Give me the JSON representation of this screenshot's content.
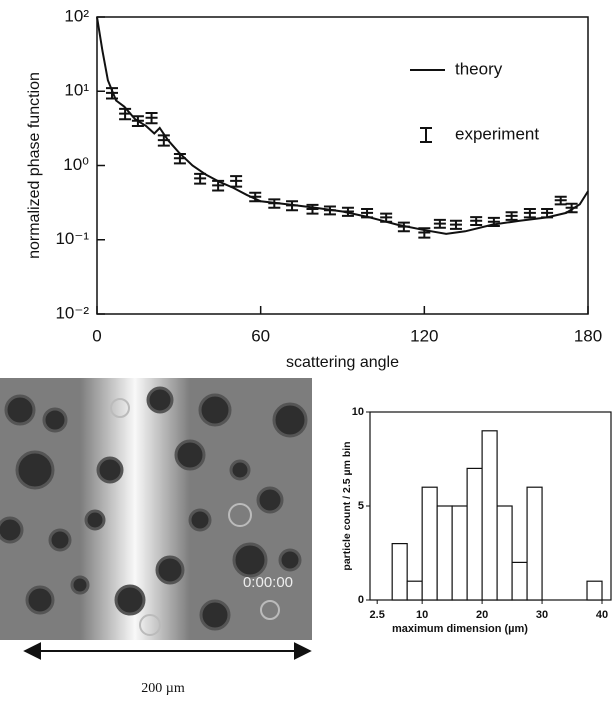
{
  "chart_data": [
    {
      "type": "line",
      "xlabel": "scattering angle",
      "ylabel": "normalized phase function",
      "log_y": true,
      "xlim": [
        0,
        180
      ],
      "ylim": [
        0.01,
        100
      ],
      "xticks": [
        0,
        60,
        120,
        180
      ],
      "yticks": [
        {
          "value": 0.01,
          "label": "10⁻²"
        },
        {
          "value": 0.1,
          "label": "10⁻¹"
        },
        {
          "value": 1,
          "label": "10⁰"
        },
        {
          "value": 10,
          "label": "10¹"
        },
        {
          "value": 100,
          "label": "10²"
        }
      ],
      "legend": "upper right",
      "series": [
        {
          "name": "theory",
          "color": "#111111",
          "style": "line",
          "x": [
            0,
            2,
            4,
            7,
            10,
            14,
            18,
            21,
            23,
            26,
            30,
            35,
            40,
            45,
            50,
            55,
            60,
            70,
            80,
            90,
            100,
            110,
            120,
            128,
            135,
            145,
            155,
            165,
            172,
            177,
            180
          ],
          "values": [
            100,
            35,
            14,
            7.5,
            6.2,
            4.2,
            3.4,
            2.7,
            3.2,
            2.2,
            1.5,
            1.0,
            0.75,
            0.6,
            0.5,
            0.4,
            0.33,
            0.3,
            0.27,
            0.24,
            0.2,
            0.16,
            0.135,
            0.12,
            0.13,
            0.16,
            0.18,
            0.2,
            0.23,
            0.3,
            0.45
          ]
        },
        {
          "name": "experiment",
          "color": "#111111",
          "style": "errorbar",
          "x": [
            5.5,
            10.3,
            15,
            20,
            24.5,
            30.4,
            37.8,
            44.4,
            51,
            58,
            65,
            71.5,
            79,
            85.4,
            92,
            99,
            106,
            112.5,
            120,
            125.7,
            131.6,
            139,
            145.5,
            152,
            158.7,
            165,
            170,
            174
          ],
          "values": [
            9.5,
            5,
            4,
            4.4,
            2.2,
            1.25,
            0.67,
            0.54,
            0.62,
            0.38,
            0.31,
            0.29,
            0.26,
            0.25,
            0.24,
            0.23,
            0.2,
            0.15,
            0.125,
            0.165,
            0.16,
            0.18,
            0.175,
            0.21,
            0.23,
            0.23,
            0.34,
            0.27
          ],
          "errors": [
            1.5,
            0.8,
            0.6,
            0.7,
            0.35,
            0.18,
            0.1,
            0.08,
            0.1,
            0.05,
            0.04,
            0.04,
            0.035,
            0.03,
            0.03,
            0.03,
            0.025,
            0.02,
            0.018,
            0.02,
            0.02,
            0.022,
            0.022,
            0.025,
            0.03,
            0.03,
            0.04,
            0.035
          ]
        }
      ]
    },
    {
      "type": "histogram",
      "xlabel": "maximum dimension (µm)",
      "ylabel": "particle count / 2.5 µm bin",
      "color": "#ffffff",
      "bins": [
        5,
        7.5,
        10,
        12.5,
        15,
        17.5,
        20,
        22.5,
        25,
        27.5,
        30,
        32.5,
        35,
        37.5,
        40
      ],
      "values": [
        3,
        1,
        6,
        5,
        5,
        7,
        9,
        5,
        2,
        6,
        0,
        0,
        0,
        1
      ],
      "xlim": [
        1.3,
        41.5
      ],
      "ylim": [
        0,
        10
      ],
      "xticks": [
        2.5,
        10,
        20,
        30,
        40
      ],
      "yticks": [
        0,
        5,
        10
      ]
    }
  ],
  "image": {
    "timestamp": "0:00:00",
    "scale_label": "200 µm"
  }
}
